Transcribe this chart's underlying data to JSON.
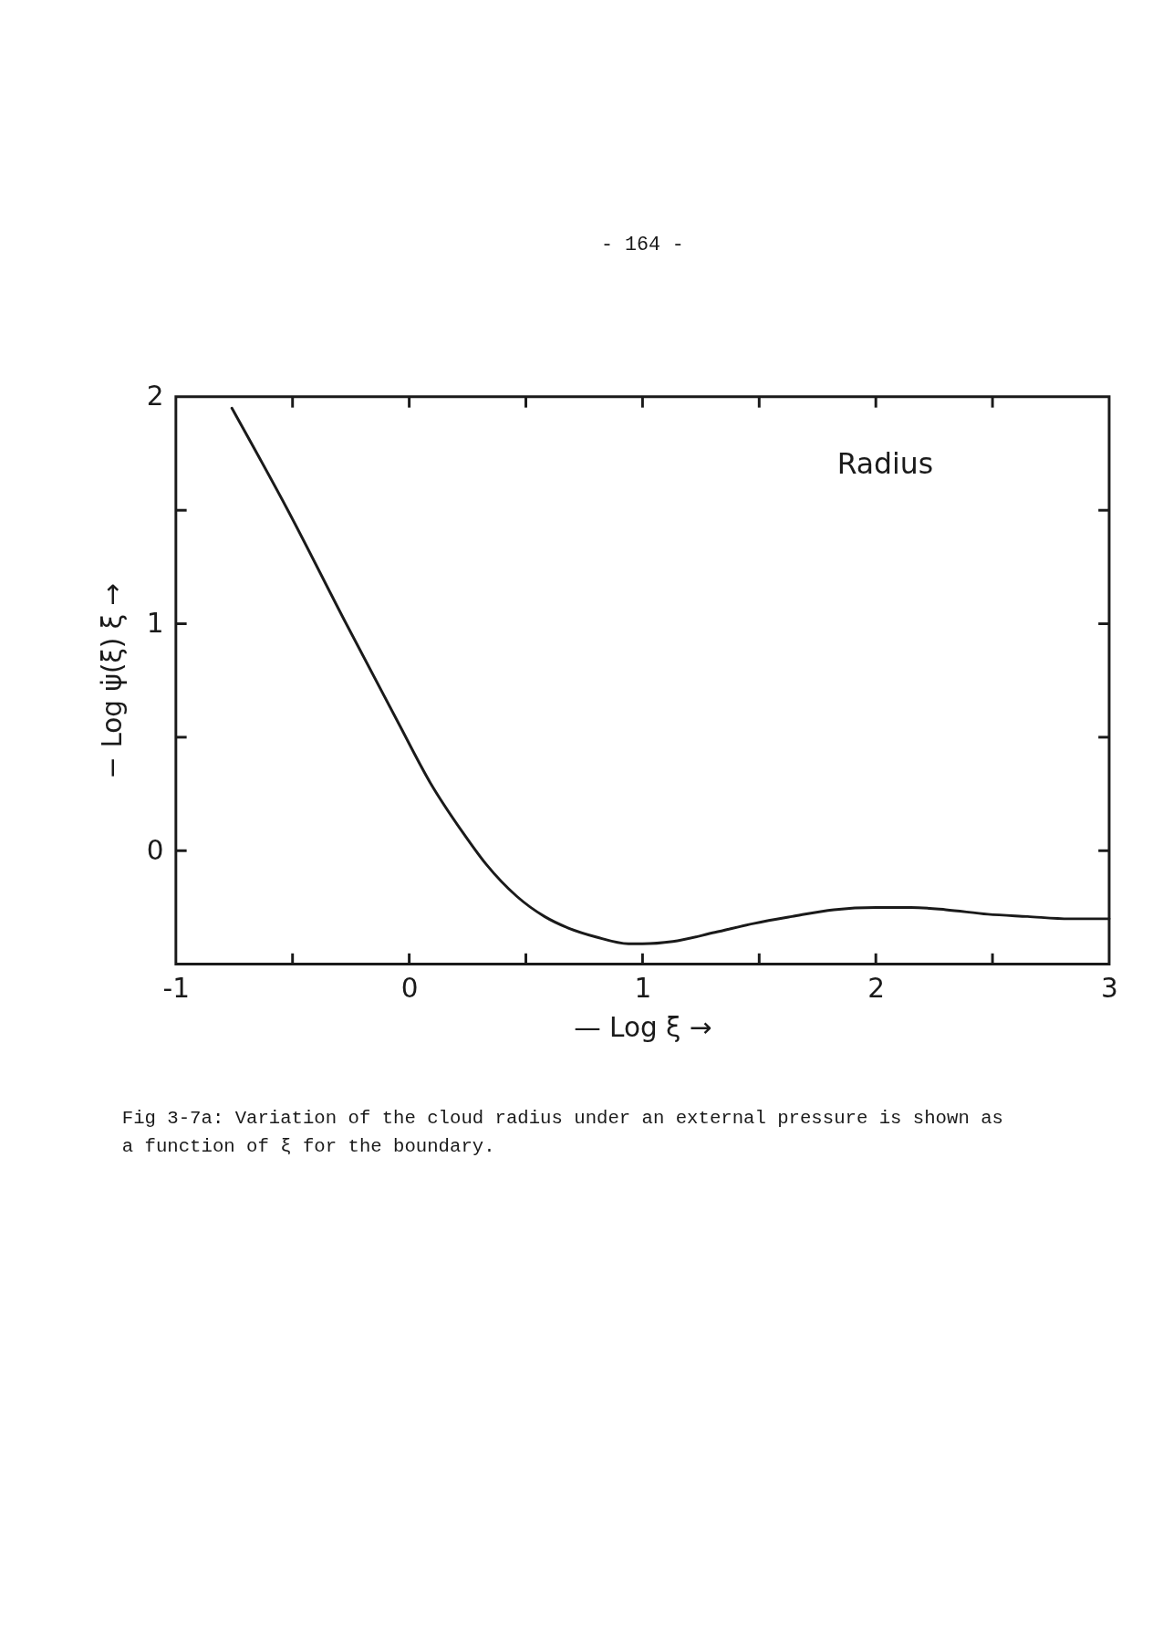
{
  "chart_data": {
    "type": "line",
    "title": "Radius",
    "xlabel": "— Log ξ →",
    "ylabel": "− Log ψ̇(ξ) ξ →",
    "x": [
      -0.76,
      -0.52,
      -0.27,
      -0.05,
      0.09,
      0.23,
      0.33,
      0.46,
      0.58,
      0.68,
      0.8,
      0.94,
      1.0,
      1.13,
      1.31,
      1.48,
      1.64,
      1.82,
      2.0,
      2.15,
      2.3,
      2.48,
      2.65,
      2.83,
      3.0
    ],
    "series": [
      {
        "color": "#1a1a1a",
        "values": [
          1.95,
          1.5,
          1.0,
          0.57,
          0.3,
          0.08,
          -0.06,
          -0.2,
          -0.29,
          -0.34,
          -0.38,
          -0.41,
          -0.41,
          -0.4,
          -0.36,
          -0.32,
          -0.29,
          -0.26,
          -0.25,
          -0.25,
          -0.26,
          -0.28,
          -0.29,
          -0.3,
          -0.3
        ]
      }
    ],
    "xlim": [
      -1,
      3
    ],
    "ylim": [
      -0.5,
      2
    ],
    "xticks": [
      -1,
      {
        "value": -0.5,
        "label": null
      },
      0,
      {
        "value": 0.5,
        "label": null
      },
      1,
      {
        "value": 1.5,
        "label": null
      },
      2,
      {
        "value": 2.5,
        "label": null
      },
      3
    ],
    "yticks": [
      {
        "value": -0.5,
        "label": null
      },
      0,
      {
        "value": 0.5,
        "label": null
      },
      1,
      {
        "value": 1.5,
        "label": null
      },
      2
    ],
    "annotations": [
      "- 164 -",
      "Fig 3-7a:  Variation of the cloud radius under an external pressure is shown as a function of ξ for the boundary."
    ]
  }
}
